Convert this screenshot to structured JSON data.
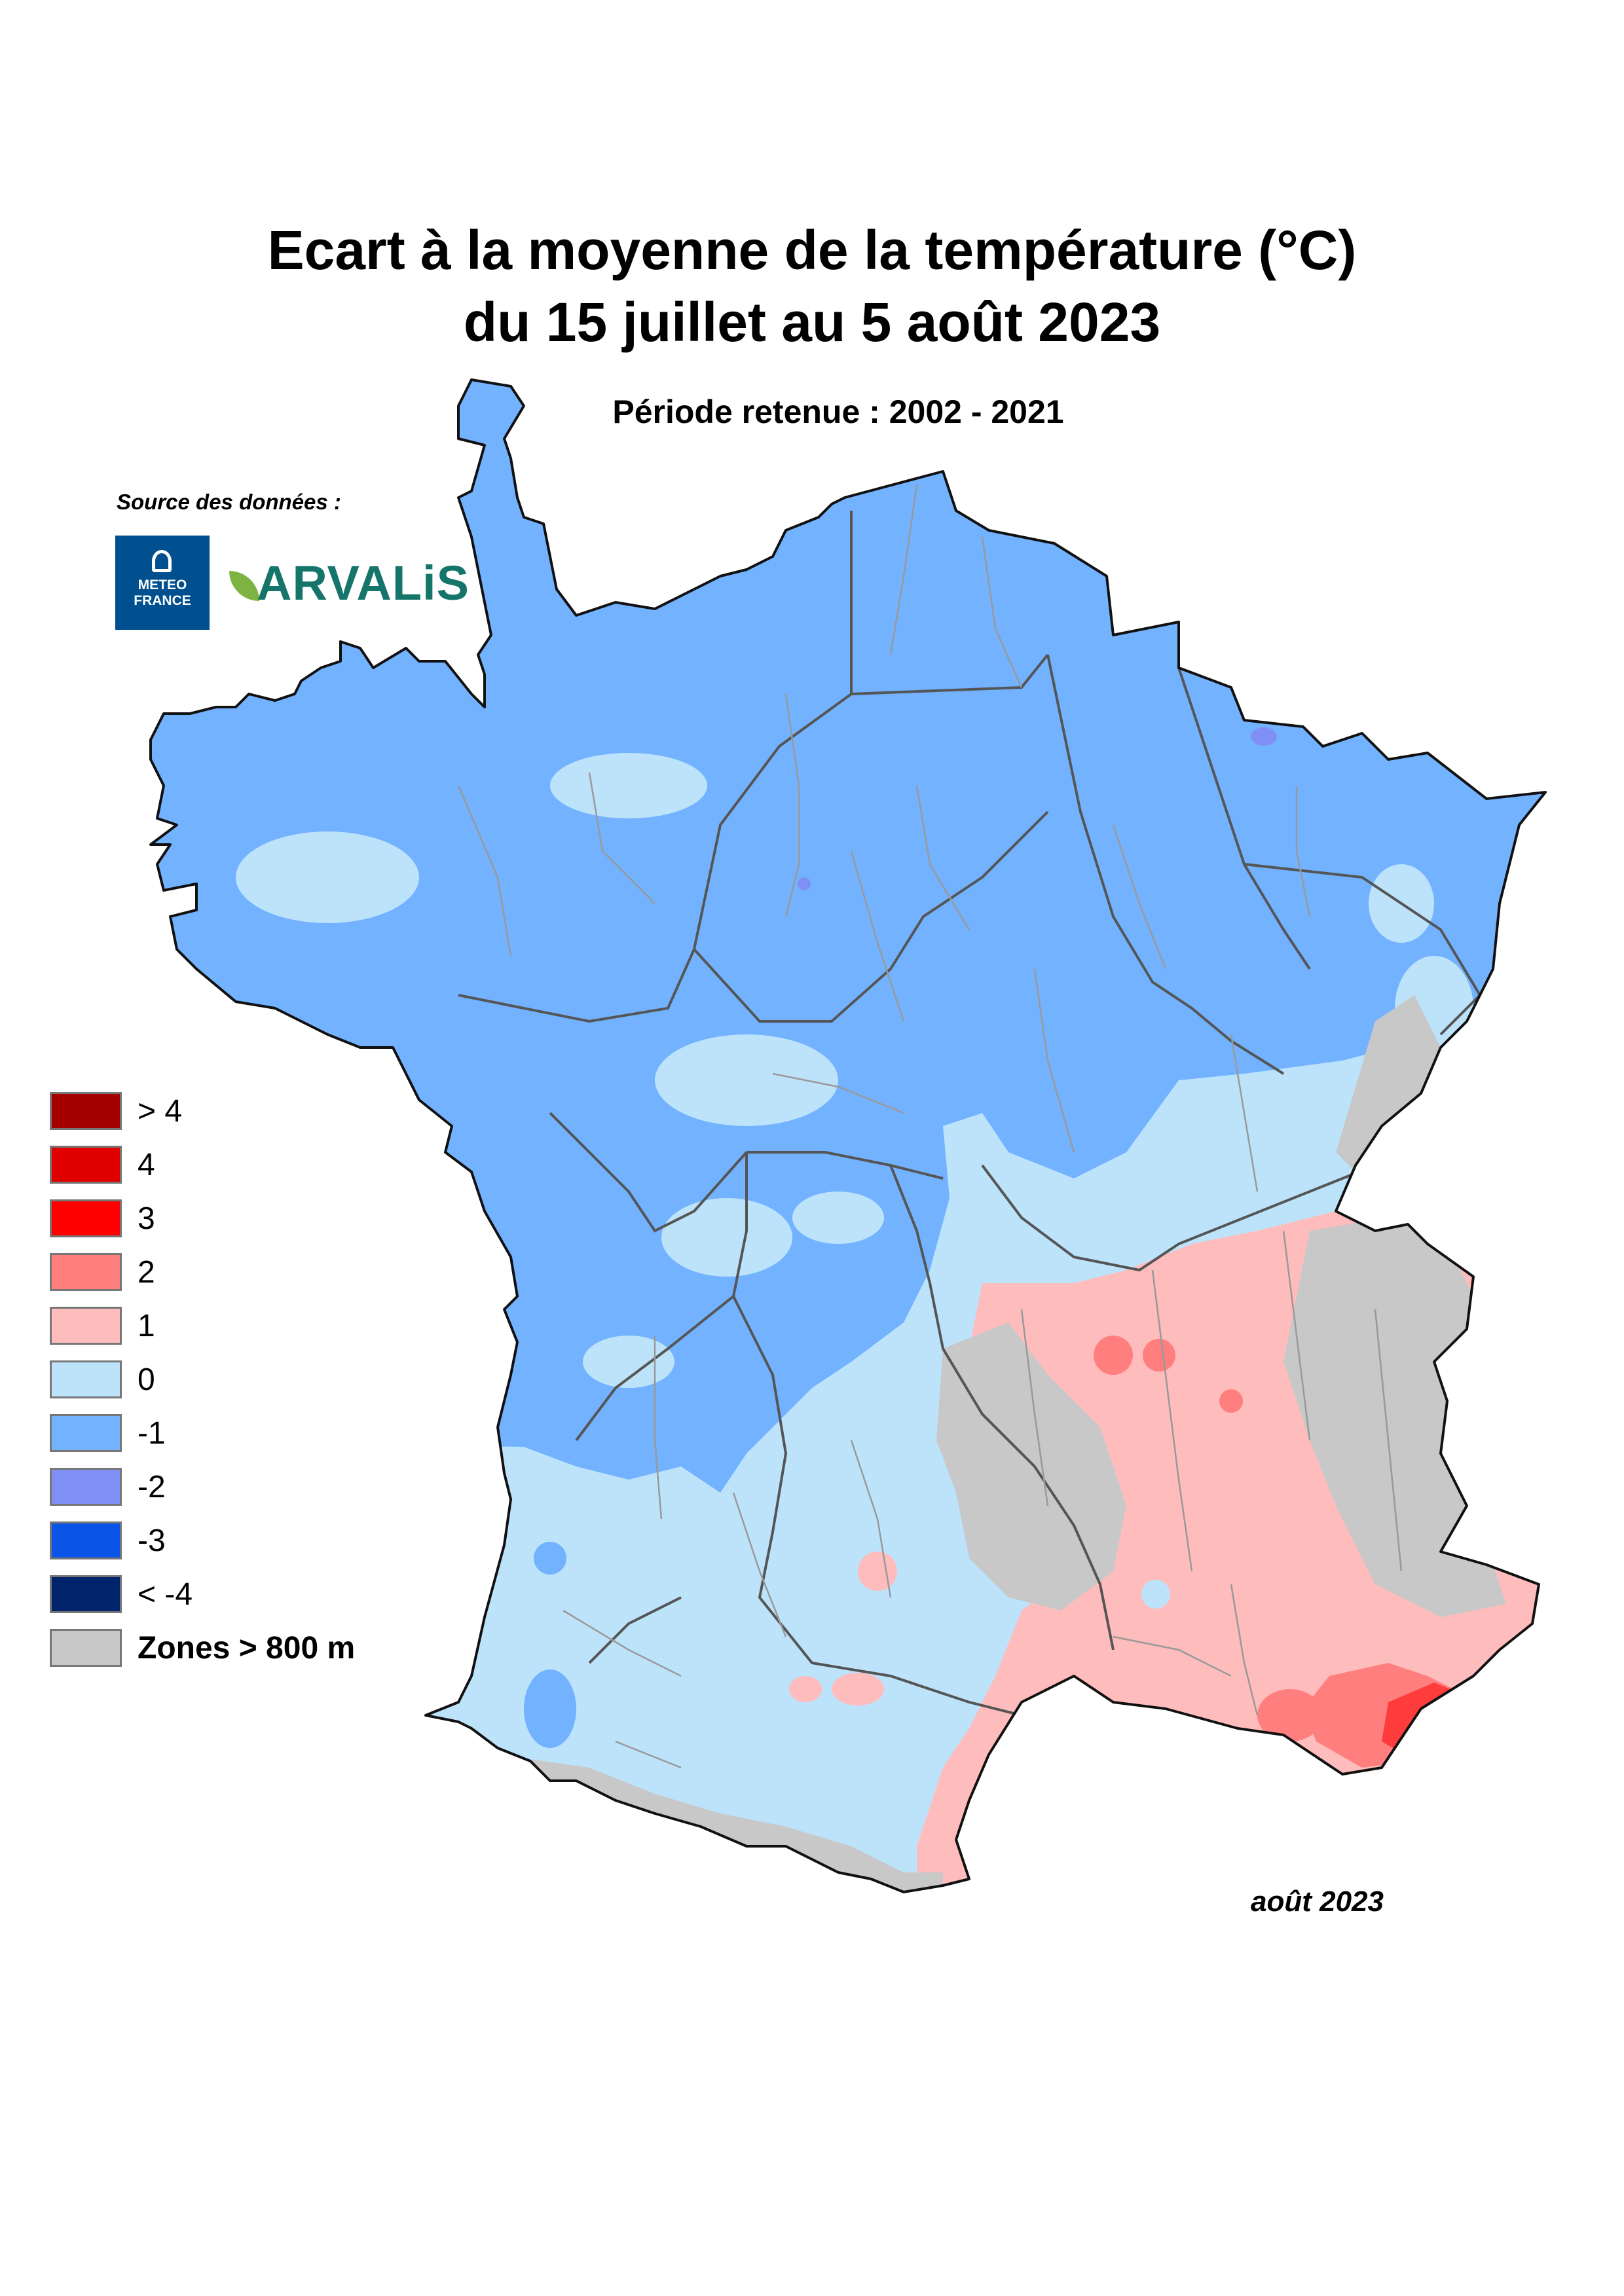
{
  "title_line1": "Ecart à la moyenne de la température (°C)",
  "title_line2": "du 15 juillet au 5 août 2023",
  "subtitle": "Période retenue : 2002 - 2021",
  "source_label": "Source des données :",
  "logos": {
    "meteo_france": "METEO FRANCE",
    "arvalis": "ARVALiS"
  },
  "legend": [
    {
      "label": "> 4",
      "color": "#a50000"
    },
    {
      "label": "4",
      "color": "#e00000"
    },
    {
      "label": "3",
      "color": "#ff0000"
    },
    {
      "label": "2",
      "color": "#ff7f7f"
    },
    {
      "label": "1",
      "color": "#ffbcbc"
    },
    {
      "label": "0",
      "color": "#bde3fb"
    },
    {
      "label": "-1",
      "color": "#72b2ff"
    },
    {
      "label": "-2",
      "color": "#7f8ff5"
    },
    {
      "label": "-3",
      "color": "#0a55e8"
    },
    {
      "label": "< -4",
      "color": "#00236b"
    },
    {
      "label": "Zones > 800 m",
      "color": "#c8c8c8"
    }
  ],
  "date_label": "août 2023",
  "map_colors": {
    "cold": "#72b2ff",
    "neutral": "#bde3fb",
    "warm1": "#ffbcbc",
    "warm2": "#ff7f7f",
    "warm3": "#ff3c3c",
    "mountains": "#c8c8c8",
    "borders_region": "#555555",
    "borders_dept": "#999999"
  }
}
